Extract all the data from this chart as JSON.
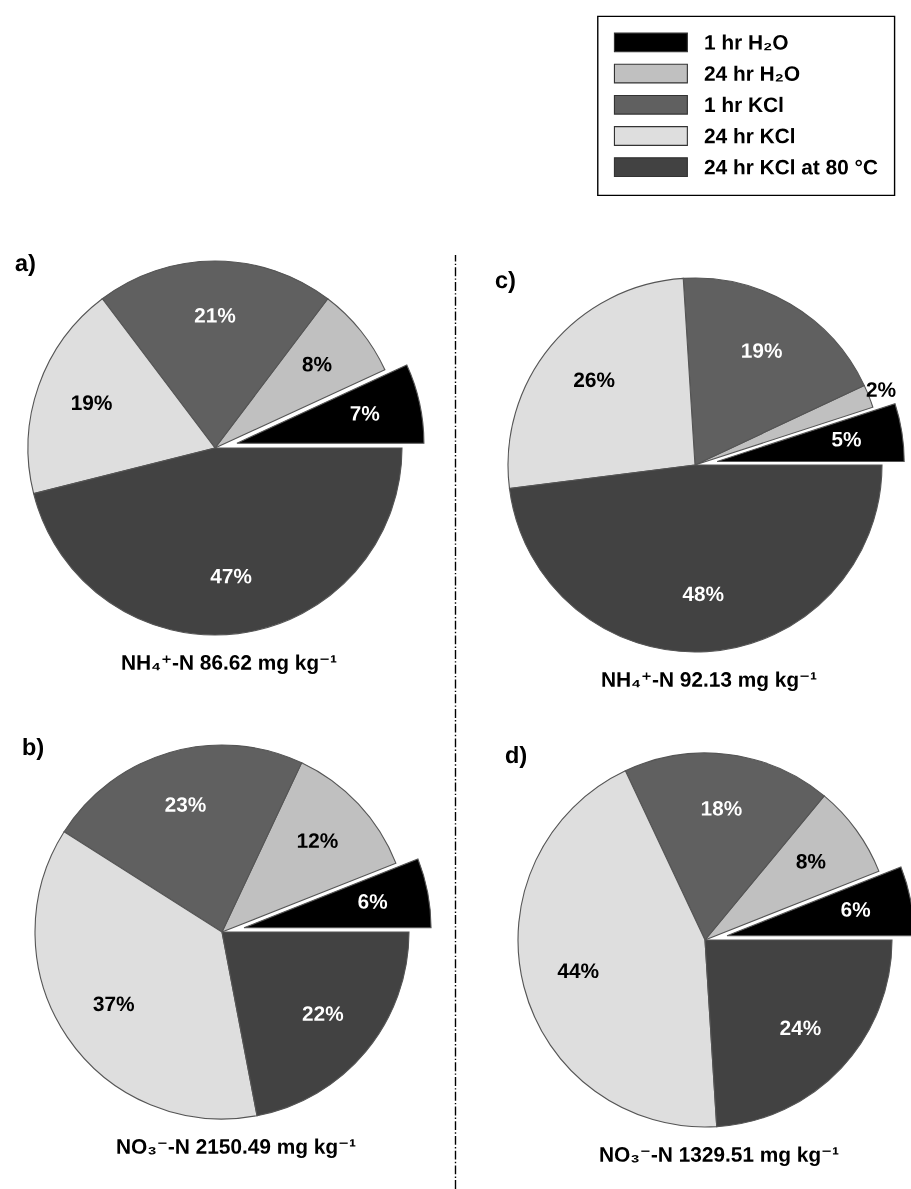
{
  "chart_data": [
    {
      "type": "pie",
      "title": "a)",
      "xlabel": "NH₄⁺-N 86.62 mg kg⁻¹",
      "categories": [
        "1 hr H₂O",
        "24 hr H₂O",
        "1 hr KCl",
        "24 hr KCl",
        "24 hr KCl at 80 °C"
      ],
      "values": [
        7,
        8,
        21,
        19,
        47
      ],
      "value_labels": [
        "7%",
        "8%",
        "21%",
        "19%",
        "47%"
      ],
      "colors": [
        "#000000",
        "#c0c0c0",
        "#606060",
        "#dedede",
        "#424242"
      ],
      "legend": "top right"
    },
    {
      "type": "pie",
      "title": "c)",
      "xlabel": "NH₄⁺-N 92.13 mg kg⁻¹",
      "categories": [
        null,
        null,
        null,
        null,
        null
      ],
      "values": [
        5,
        2,
        19,
        26,
        48
      ],
      "value_labels": [
        "5%",
        "2%",
        "19%",
        "26%",
        "48%"
      ],
      "colors": [
        "#000000",
        "#c0c0c0",
        "#606060",
        "#dedede",
        "#424242"
      ]
    },
    {
      "type": "pie",
      "title": "b)",
      "xlabel": "NO₃⁻-N 2150.49 mg kg⁻¹",
      "categories": [
        null,
        null,
        null,
        null,
        null
      ],
      "values": [
        6,
        12,
        23,
        37,
        22
      ],
      "value_labels": [
        "6%",
        "12%",
        "23%",
        "37%",
        "22%"
      ],
      "colors": [
        "#000000",
        "#c0c0c0",
        "#606060",
        "#dedede",
        "#424242"
      ]
    },
    {
      "type": "pie",
      "title": "d)",
      "xlabel": "NO₃⁻-N 1329.51 mg kg⁻¹",
      "categories": [
        null,
        null,
        null,
        null,
        null
      ],
      "values": [
        6,
        8,
        18,
        44,
        24
      ],
      "value_labels": [
        "6%",
        "8%",
        "18%",
        "44%",
        "24%"
      ],
      "colors": [
        "#000000",
        "#c0c0c0",
        "#606060",
        "#dedede",
        "#424242"
      ]
    }
  ]
}
